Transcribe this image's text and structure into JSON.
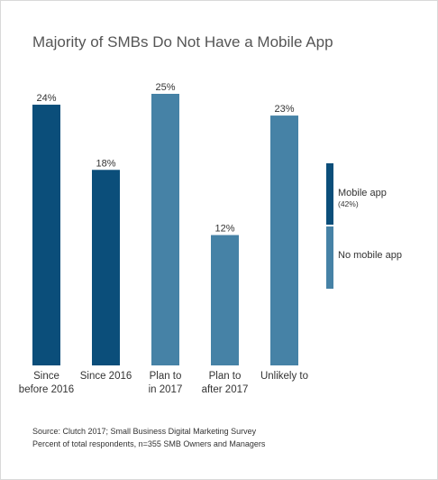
{
  "chart_data": {
    "type": "bar",
    "title": "Majority of SMBs Do Not Have a Mobile App",
    "categories": [
      [
        "Since",
        "before 2016"
      ],
      [
        "Since 2016"
      ],
      [
        "Plan to",
        "in 2017"
      ],
      [
        "Plan to",
        "after 2017"
      ],
      [
        "Unlikely to"
      ]
    ],
    "values": [
      24,
      18,
      25,
      12,
      23
    ],
    "value_labels": [
      "24%",
      "18%",
      "25%",
      "12%",
      "23%"
    ],
    "group": [
      "mobile",
      "mobile",
      "none",
      "none",
      "none"
    ],
    "ylim": [
      0,
      25
    ],
    "grid": false,
    "xlabel": "",
    "ylabel": "",
    "legend": {
      "placement": "right",
      "items": [
        {
          "key": "mobile",
          "label": "Mobile app",
          "note": "(42%)",
          "color": "#0b4e7a"
        },
        {
          "key": "none",
          "label": "No mobile app",
          "note": "",
          "color": "#4682a6"
        }
      ]
    }
  },
  "source_lines": [
    "Source: Clutch 2017; Small Business Digital Marketing Survey",
    "Percent of total respondents, n=355 SMB Owners and Managers"
  ]
}
